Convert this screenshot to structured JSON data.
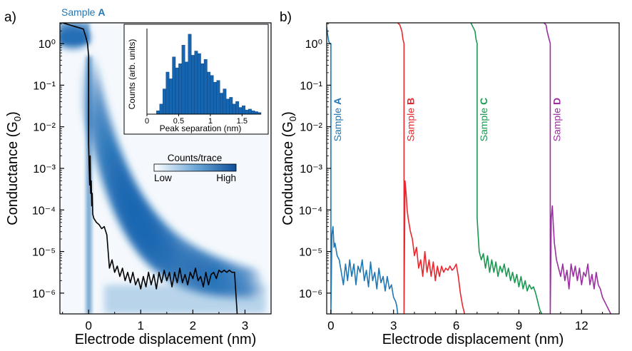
{
  "colors": {
    "sample_a": "#1f77b4",
    "sample_b": "#e8282e",
    "sample_c": "#1a9850",
    "sample_d": "#9b2fa0",
    "density": "#1565b0",
    "trace": "#000000"
  },
  "chart_data": [
    {
      "panel": "a)",
      "type": "heatmap",
      "title": "Sample A",
      "title_prefix": "Sample ",
      "title_sample": "A",
      "xlabel": "Electrode displacement (nm)",
      "ylabel": "Conductance (G",
      "ylabel_sub": "0",
      "ylabel_tail": ")",
      "xlim": [
        -0.55,
        3.5
      ],
      "ylim_log10": [
        -6.5,
        0.5
      ],
      "y_scale": "log",
      "x_ticks": [
        "0",
        "1",
        "2",
        "3"
      ],
      "y_ticks": [
        "10⁰",
        "10⁻¹",
        "10⁻²",
        "10⁻³",
        "10⁻⁴",
        "10⁻⁵",
        "10⁻⁶"
      ],
      "colorbar": {
        "title": "Counts/trace",
        "low": "Low",
        "high": "High"
      },
      "example_trace": {
        "x": [
          -0.5,
          -0.1,
          -0.05,
          -0.02,
          0.0,
          0.0,
          0.01,
          0.02,
          0.03,
          0.04,
          0.05,
          0.06,
          0.07,
          0.08,
          0.1,
          0.15,
          0.2,
          0.25,
          0.3,
          0.35,
          0.4,
          0.45,
          0.5,
          0.55,
          0.6,
          0.65,
          0.7,
          0.75,
          0.8,
          0.85,
          0.9,
          0.95,
          1.0,
          1.05,
          1.1,
          1.15,
          1.2,
          1.25,
          1.3,
          1.35,
          1.4,
          1.45,
          1.5,
          1.55,
          1.6,
          1.65,
          1.7,
          1.75,
          1.8,
          1.85,
          1.9,
          1.95,
          2.0,
          2.05,
          2.1,
          2.15,
          2.2,
          2.25,
          2.3,
          2.35,
          2.4,
          2.45,
          2.5,
          2.55,
          2.6,
          2.65,
          2.7,
          2.75,
          2.8,
          2.85
        ],
        "log10_y": [
          0.5,
          0.35,
          0.15,
          0.0,
          -0.3,
          -2.4,
          -2.9,
          -3.4,
          -2.7,
          -3.6,
          -3.3,
          -3.9,
          -3.6,
          -4.1,
          -4.2,
          -4.3,
          -4.35,
          -4.45,
          -4.4,
          -4.6,
          -5.4,
          -5.2,
          -5.5,
          -5.35,
          -5.6,
          -5.4,
          -5.7,
          -5.5,
          -5.75,
          -5.5,
          -5.8,
          -5.65,
          -5.9,
          -5.6,
          -5.85,
          -5.5,
          -5.8,
          -5.55,
          -5.9,
          -5.5,
          -5.75,
          -5.45,
          -5.7,
          -5.5,
          -5.85,
          -5.5,
          -5.75,
          -5.4,
          -5.75,
          -5.55,
          -5.8,
          -5.5,
          -5.65,
          -5.4,
          -5.7,
          -5.6,
          -5.85,
          -5.5,
          -5.8,
          -5.55,
          -5.5,
          -5.65,
          -5.45,
          -5.5,
          -5.45,
          -5.5,
          -5.45,
          -5.5,
          -5.5,
          -6.5
        ]
      }
    },
    {
      "panel": "inset",
      "type": "bar",
      "xlabel": "Peak separation (nm)",
      "ylabel": "Counts (arb. units)",
      "x_ticks": [
        "0",
        "0.5",
        "1",
        "1.5"
      ],
      "xlim": [
        0,
        1.8
      ],
      "bin_width": 0.05,
      "values": [
        0,
        0,
        0,
        0.04,
        0.12,
        0.3,
        0.5,
        0.42,
        0.68,
        0.55,
        0.6,
        0.82,
        0.62,
        0.95,
        0.7,
        0.75,
        0.72,
        0.6,
        0.65,
        0.5,
        0.46,
        0.38,
        0.4,
        0.25,
        0.3,
        0.18,
        0.2,
        0.12,
        0.15,
        0.08,
        0.1,
        0.05,
        0.06,
        0.04,
        0.03,
        0.02
      ]
    },
    {
      "panel": "b)",
      "type": "line",
      "xlabel": "Electrode displacement (nm)",
      "ylabel": "Conductance (G",
      "ylabel_sub": "0",
      "ylabel_tail": ")",
      "xlim": [
        -0.2,
        13.8
      ],
      "ylim_log10": [
        -6.5,
        0.5
      ],
      "y_scale": "log",
      "x_ticks": [
        "0",
        "3",
        "6",
        "9",
        "12"
      ],
      "y_ticks": [
        "10⁰",
        "10⁻¹",
        "10⁻²",
        "10⁻³",
        "10⁻⁴",
        "10⁻⁵",
        "10⁻⁶"
      ],
      "series": [
        {
          "prefix": "Sample ",
          "letter": "A",
          "offset": 0.0,
          "x": [
            -0.2,
            -0.15,
            -0.1,
            -0.05,
            0.0,
            0.0,
            0.05,
            0.1,
            0.15,
            0.2,
            0.3,
            0.4,
            0.5,
            0.6,
            0.7,
            0.8,
            0.9,
            1.0,
            1.1,
            1.2,
            1.3,
            1.4,
            1.5,
            1.6,
            1.7,
            1.8,
            1.9,
            2.0,
            2.1,
            2.2,
            2.3,
            2.4,
            2.5,
            2.6,
            2.7,
            2.8,
            2.9,
            3.0,
            3.1,
            3.15,
            3.2
          ],
          "log10_y": [
            0.4,
            0.2,
            0.05,
            0.0,
            0.0,
            -6.5,
            -4.6,
            -4.4,
            -4.9,
            -4.8,
            -5.1,
            -5.2,
            -5.5,
            -5.8,
            -5.3,
            -5.7,
            -5.2,
            -5.6,
            -5.3,
            -5.8,
            -5.35,
            -5.5,
            -5.2,
            -5.7,
            -5.45,
            -5.85,
            -5.25,
            -5.7,
            -5.5,
            -5.9,
            -5.4,
            -5.75,
            -5.6,
            -5.95,
            -5.6,
            -5.9,
            -5.8,
            -6.1,
            -6.2,
            -6.3,
            -6.5
          ]
        },
        {
          "prefix": "Sample ",
          "letter": "B",
          "offset": 3.5,
          "x": [
            3.2,
            3.3,
            3.4,
            3.45,
            3.5,
            3.5,
            3.55,
            3.6,
            3.65,
            3.7,
            3.8,
            3.9,
            4.0,
            4.1,
            4.2,
            4.3,
            4.4,
            4.5,
            4.6,
            4.7,
            4.8,
            4.9,
            5.0,
            5.1,
            5.2,
            5.3,
            5.4,
            5.5,
            5.6,
            5.7,
            5.8,
            5.9,
            6.0,
            6.1,
            6.2,
            6.3,
            6.4
          ],
          "log10_y": [
            0.5,
            0.45,
            0.3,
            0.1,
            0.0,
            -6.5,
            -3.3,
            -3.6,
            -4.0,
            -4.2,
            -4.5,
            -4.7,
            -5.1,
            -4.9,
            -5.4,
            -5.2,
            -5.6,
            -5.0,
            -5.5,
            -5.2,
            -5.6,
            -5.25,
            -5.7,
            -5.35,
            -5.6,
            -5.35,
            -5.5,
            -5.4,
            -5.45,
            -5.35,
            -5.45,
            -5.4,
            -5.3,
            -5.6,
            -6.0,
            -6.3,
            -6.5
          ]
        },
        {
          "prefix": "Sample ",
          "letter": "C",
          "offset": 7.0,
          "x": [
            6.7,
            6.8,
            6.9,
            6.95,
            7.0,
            7.0,
            7.05,
            7.1,
            7.2,
            7.3,
            7.4,
            7.5,
            7.6,
            7.7,
            7.8,
            7.9,
            8.0,
            8.1,
            8.2,
            8.3,
            8.4,
            8.5,
            8.6,
            8.7,
            8.8,
            8.9,
            9.0,
            9.1,
            9.2,
            9.3,
            9.4,
            9.5,
            9.6,
            9.7,
            9.8,
            9.9,
            10.0,
            10.1
          ],
          "log10_y": [
            0.5,
            0.4,
            0.3,
            0.1,
            0.0,
            -4.2,
            -4.6,
            -5.0,
            -5.2,
            -5.05,
            -5.4,
            -5.1,
            -5.5,
            -5.2,
            -5.5,
            -5.25,
            -5.6,
            -5.35,
            -5.5,
            -5.3,
            -5.6,
            -5.4,
            -5.7,
            -5.5,
            -5.75,
            -5.55,
            -5.85,
            -5.6,
            -5.9,
            -5.7,
            -5.95,
            -5.8,
            -5.9,
            -5.85,
            -6.0,
            -6.2,
            -6.4,
            -6.5
          ]
        },
        {
          "prefix": "Sample ",
          "letter": "D",
          "offset": 10.5,
          "x": [
            10.2,
            10.3,
            10.35,
            10.4,
            10.45,
            10.5,
            10.5,
            10.55,
            10.6,
            10.65,
            10.7,
            10.8,
            10.9,
            11.0,
            11.1,
            11.2,
            11.3,
            11.4,
            11.5,
            11.6,
            11.7,
            11.8,
            11.9,
            12.0,
            12.1,
            12.2,
            12.3,
            12.4,
            12.5,
            12.6,
            12.7,
            12.8,
            12.9,
            13.0,
            13.1,
            13.2,
            13.3,
            13.4
          ],
          "log10_y": [
            0.5,
            0.45,
            0.3,
            0.2,
            0.1,
            0.0,
            -6.5,
            -4.2,
            -3.9,
            -4.4,
            -4.8,
            -5.2,
            -5.4,
            -5.6,
            -5.3,
            -5.7,
            -5.45,
            -5.9,
            -5.3,
            -5.6,
            -5.35,
            -5.7,
            -5.4,
            -5.8,
            -5.5,
            -5.6,
            -5.3,
            -5.8,
            -5.55,
            -5.9,
            -5.5,
            -5.8,
            -5.9,
            -6.1,
            -6.2,
            -6.3,
            -6.4,
            -6.5
          ]
        }
      ]
    }
  ]
}
